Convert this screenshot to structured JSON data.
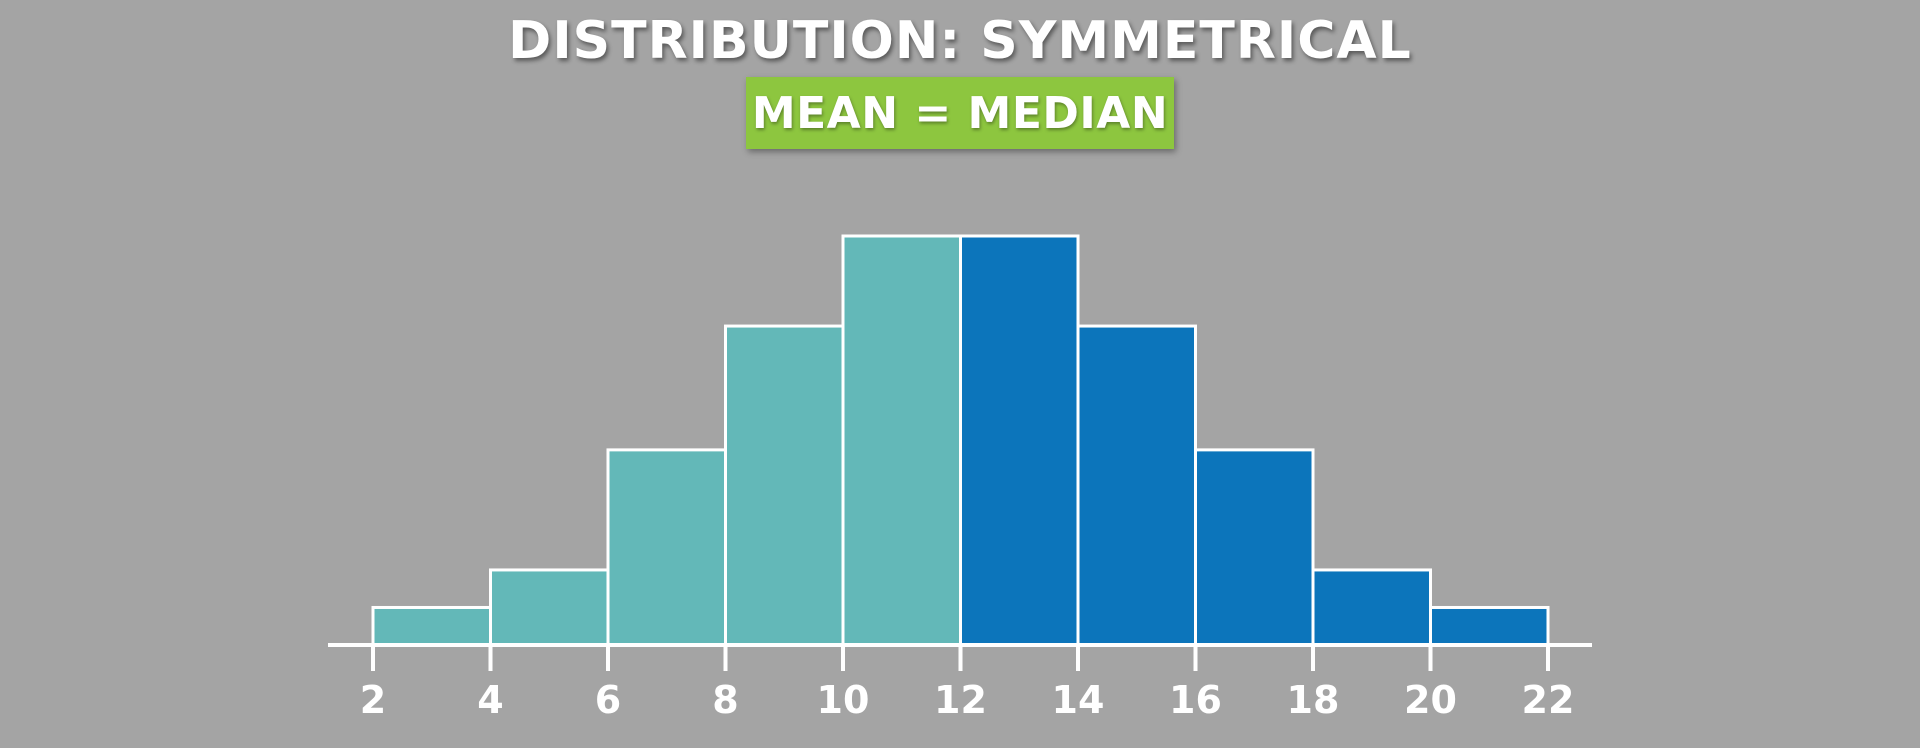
{
  "header": {
    "title": "DISTRIBUTION: SYMMETRICAL",
    "badge_text": "MEAN = MEDIAN"
  },
  "colors": {
    "background": "#a4a4a4",
    "badge": "#8dc63f",
    "left_bars": "#63b8b8",
    "right_bars": "#0c75bb",
    "outline": "#ffffff"
  },
  "chart_data": {
    "type": "bar",
    "title": "DISTRIBUTION: SYMMETRICAL",
    "subtitle": "MEAN = MEDIAN",
    "xlabel": "",
    "ylabel": "",
    "x_ticks": [
      2,
      4,
      6,
      8,
      10,
      12,
      14,
      16,
      18,
      20,
      22
    ],
    "bins": [
      {
        "from": 2,
        "to": 4,
        "value": 1,
        "color": "#63b8b8"
      },
      {
        "from": 4,
        "to": 6,
        "value": 2,
        "color": "#63b8b8"
      },
      {
        "from": 6,
        "to": 8,
        "value": 5.2,
        "color": "#63b8b8"
      },
      {
        "from": 8,
        "to": 10,
        "value": 8.5,
        "color": "#63b8b8"
      },
      {
        "from": 10,
        "to": 12,
        "value": 10.9,
        "color": "#63b8b8"
      },
      {
        "from": 12,
        "to": 14,
        "value": 10.9,
        "color": "#0c75bb"
      },
      {
        "from": 14,
        "to": 16,
        "value": 8.5,
        "color": "#0c75bb"
      },
      {
        "from": 16,
        "to": 18,
        "value": 5.2,
        "color": "#0c75bb"
      },
      {
        "from": 18,
        "to": 20,
        "value": 2,
        "color": "#0c75bb"
      },
      {
        "from": 20,
        "to": 22,
        "value": 1,
        "color": "#0c75bb"
      }
    ],
    "xlim": [
      2,
      22
    ],
    "ylim": [
      0,
      10.9
    ],
    "grid": false,
    "legend": "none"
  }
}
